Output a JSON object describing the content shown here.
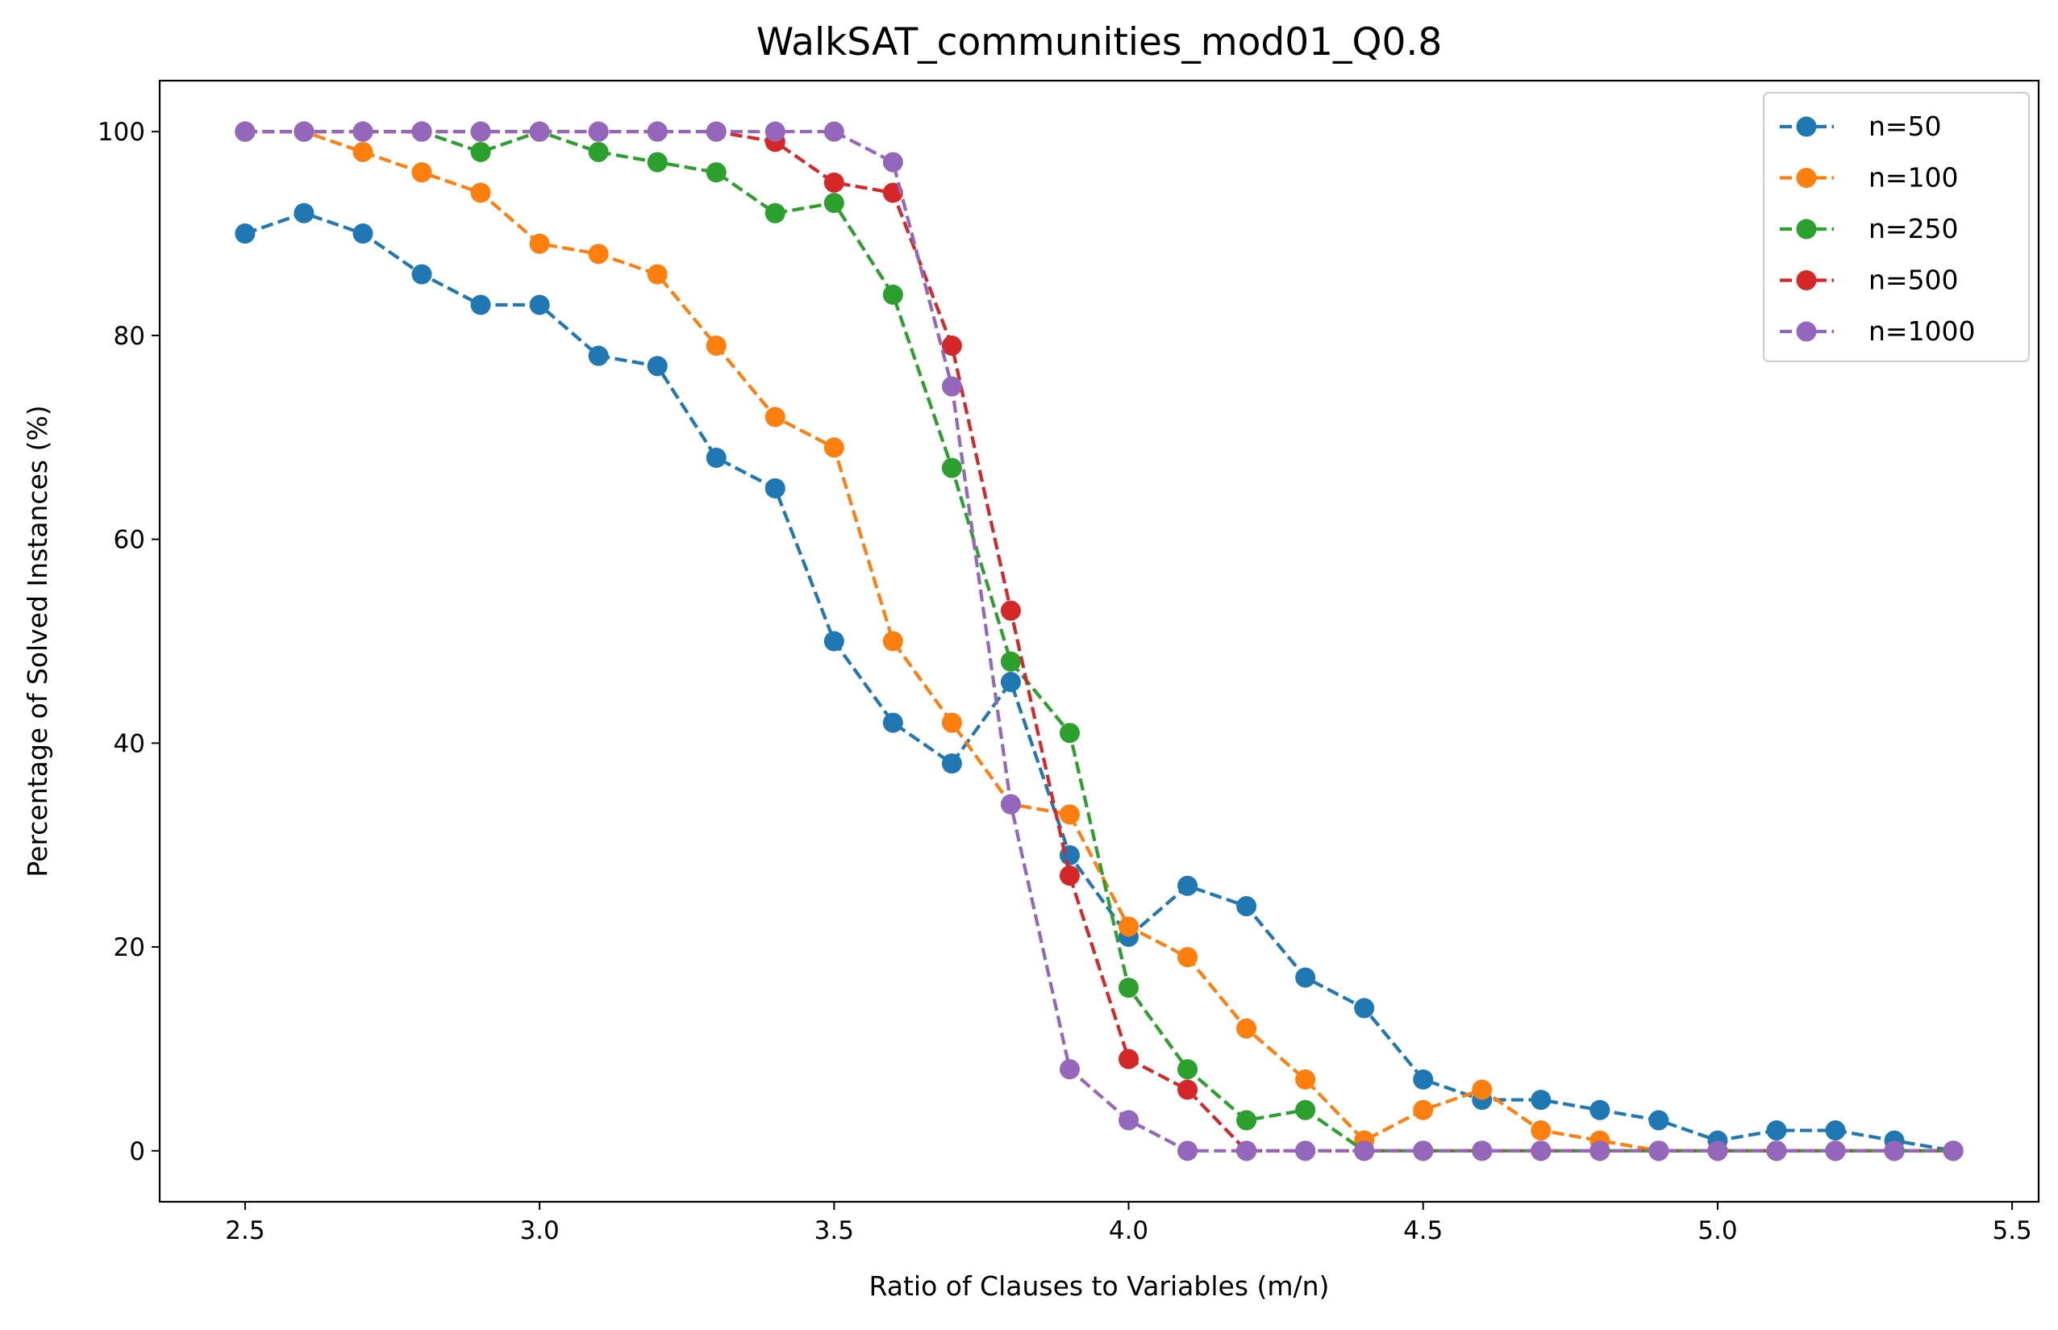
{
  "chart_data": {
    "type": "line",
    "title": "WalkSAT_communities_mod01_Q0.8",
    "xlabel": "Ratio of Clauses to Variables (m/n)",
    "ylabel": "Percentage of Solved Instances (%)",
    "xlim": [
      2.355,
      5.545
    ],
    "ylim": [
      -5,
      105
    ],
    "xticks": [
      2.5,
      3.0,
      3.5,
      4.0,
      4.5,
      5.0,
      5.5
    ],
    "xtick_labels": [
      "2.5",
      "3.0",
      "3.5",
      "4.0",
      "4.5",
      "5.0",
      "5.5"
    ],
    "yticks": [
      0,
      20,
      40,
      60,
      80,
      100
    ],
    "ytick_labels": [
      "0",
      "20",
      "40",
      "60",
      "80",
      "100"
    ],
    "grid": false,
    "legend_position": "upper right",
    "x": [
      2.5,
      2.6,
      2.7,
      2.8,
      2.9,
      3.0,
      3.1,
      3.2,
      3.3,
      3.4,
      3.5,
      3.6,
      3.7,
      3.8,
      3.9,
      4.0,
      4.1,
      4.2,
      4.3,
      4.4,
      4.5,
      4.6,
      4.7,
      4.8,
      4.9,
      5.0,
      5.1,
      5.2,
      5.3,
      5.4
    ],
    "series": [
      {
        "name": "n=50",
        "color": "#1f77b4",
        "values": [
          90,
          92,
          90,
          86,
          83,
          83,
          78,
          77,
          68,
          65,
          50,
          42,
          38,
          46,
          29,
          21,
          26,
          24,
          17,
          14,
          7,
          5,
          5,
          4,
          3,
          1,
          2,
          2,
          1,
          0
        ]
      },
      {
        "name": "n=100",
        "color": "#ff7f0e",
        "values": [
          100,
          100,
          98,
          96,
          94,
          89,
          88,
          86,
          79,
          72,
          69,
          50,
          42,
          34,
          33,
          22,
          19,
          12,
          7,
          1,
          4,
          6,
          2,
          1,
          0,
          0,
          0,
          0,
          0,
          0
        ]
      },
      {
        "name": "n=250",
        "color": "#2ca02c",
        "values": [
          100,
          100,
          100,
          100,
          98,
          100,
          98,
          97,
          96,
          92,
          93,
          84,
          67,
          48,
          41,
          16,
          8,
          3,
          4,
          0,
          0,
          0,
          0,
          0,
          0,
          0,
          0,
          0,
          0,
          0
        ]
      },
      {
        "name": "n=500",
        "color": "#d62728",
        "values": [
          100,
          100,
          100,
          100,
          100,
          100,
          100,
          100,
          100,
          99,
          95,
          94,
          79,
          53,
          27,
          9,
          6,
          0,
          0,
          0,
          0,
          0,
          0,
          0,
          0,
          0,
          0,
          0,
          0,
          0
        ]
      },
      {
        "name": "n=1000",
        "color": "#9467bd",
        "values": [
          100,
          100,
          100,
          100,
          100,
          100,
          100,
          100,
          100,
          100,
          100,
          97,
          75,
          34,
          8,
          3,
          0,
          0,
          0,
          0,
          0,
          0,
          0,
          0,
          0,
          0,
          0,
          0,
          0,
          0
        ]
      }
    ]
  }
}
